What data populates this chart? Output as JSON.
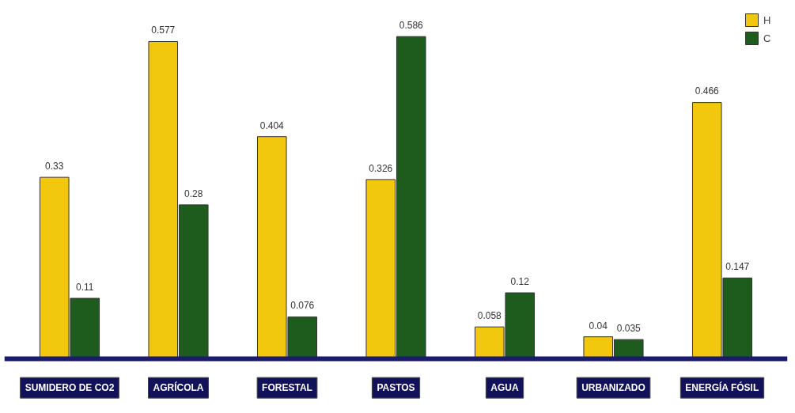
{
  "chart_data": {
    "type": "bar",
    "categories": [
      "SUMIDERO DE CO2",
      "AGRÍCOLA",
      "FORESTAL",
      "PASTOS",
      "AGUA",
      "URBANIZADO",
      "ENERGÍA FÓSIL"
    ],
    "series": [
      {
        "name": "H",
        "color": "#f2c80f",
        "values": [
          0.33,
          0.577,
          0.404,
          0.326,
          0.058,
          0.04,
          0.466
        ]
      },
      {
        "name": "C",
        "color": "#1e5c1e",
        "values": [
          0.11,
          0.28,
          0.076,
          0.586,
          0.12,
          0.035,
          0.147
        ]
      }
    ],
    "data_labels": true,
    "legend": "top right",
    "tick_labels": "x",
    "grid": false
  }
}
